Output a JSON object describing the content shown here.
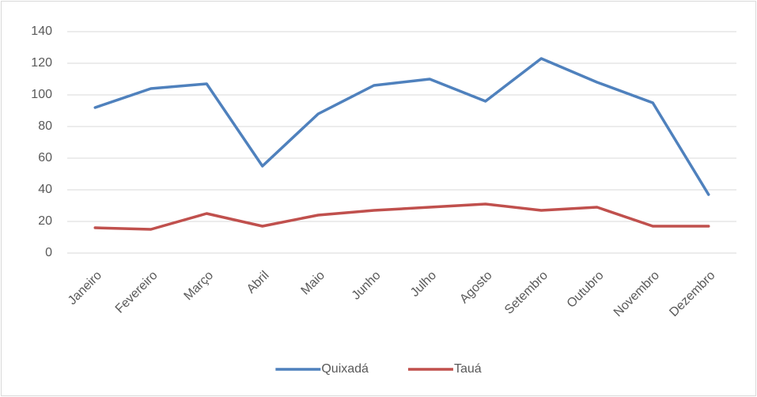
{
  "chart_data": {
    "type": "line",
    "categories": [
      "Janeiro",
      "Fevereiro",
      "Março",
      "Abril",
      "Maio",
      "Junho",
      "Julho",
      "Agosto",
      "Setembro",
      "Outubro",
      "Novembro",
      "Dezembro"
    ],
    "series": [
      {
        "name": "Quixadá",
        "color": "#4f81bd",
        "values": [
          92,
          104,
          107,
          55,
          88,
          106,
          110,
          96,
          123,
          108,
          95,
          37
        ]
      },
      {
        "name": "Tauá",
        "color": "#c0504d",
        "values": [
          16,
          15,
          25,
          17,
          24,
          27,
          29,
          31,
          27,
          29,
          17,
          17
        ]
      }
    ],
    "ylim": [
      0,
      140
    ],
    "yticks": [
      0,
      20,
      40,
      60,
      80,
      100,
      120,
      140
    ],
    "grid": true,
    "legend": "bottom"
  }
}
